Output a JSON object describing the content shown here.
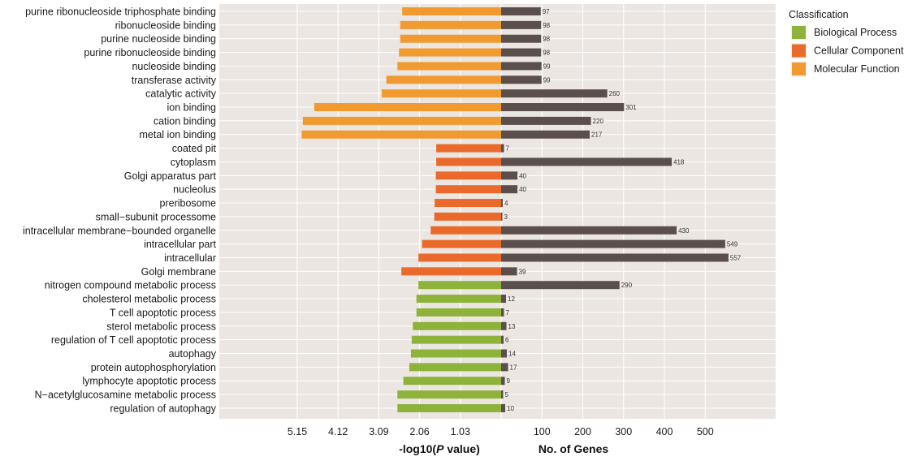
{
  "chart_data": {
    "type": "bar",
    "orientation": "horizontal",
    "panels": [
      "-log10(P value)",
      "No. of Genes"
    ],
    "categories": [
      "purine ribonucleoside triphosphate binding",
      "ribonucleoside binding",
      "purine nucleoside binding",
      "purine ribonucleoside binding",
      "nucleoside binding",
      "transferase activity",
      "catalytic activity",
      "ion binding",
      "cation binding",
      "metal ion binding",
      "coated pit",
      "cytoplasm",
      "Golgi apparatus part",
      "nucleolus",
      "preribosome",
      "small−subunit processome",
      "intracellular membrane−bounded organelle",
      "intracellular part",
      "intracellular",
      "Golgi membrane",
      "nitrogen compound metabolic process",
      "cholesterol metabolic process",
      "T cell apoptotic process",
      "sterol metabolic process",
      "regulation of T cell apoptotic process",
      "autophagy",
      "protein autophosphorylation",
      "lymphocyte apoptotic process",
      "N−acetylglucosamine metabolic process",
      "regulation of autophagy"
    ],
    "classification": [
      "Molecular Function",
      "Molecular Function",
      "Molecular Function",
      "Molecular Function",
      "Molecular Function",
      "Molecular Function",
      "Molecular Function",
      "Molecular Function",
      "Molecular Function",
      "Molecular Function",
      "Cellular Component",
      "Cellular Component",
      "Cellular Component",
      "Cellular Component",
      "Cellular Component",
      "Cellular Component",
      "Cellular Component",
      "Cellular Component",
      "Cellular Component",
      "Cellular Component",
      "Biological Process",
      "Biological Process",
      "Biological Process",
      "Biological Process",
      "Biological Process",
      "Biological Process",
      "Biological Process",
      "Biological Process",
      "Biological Process",
      "Biological Process"
    ],
    "neg_log10_p": [
      2.5,
      2.55,
      2.55,
      2.58,
      2.62,
      2.9,
      3.02,
      4.72,
      5.01,
      5.04,
      1.64,
      1.64,
      1.65,
      1.65,
      1.68,
      1.69,
      1.78,
      2.0,
      2.09,
      2.52,
      2.09,
      2.14,
      2.14,
      2.23,
      2.26,
      2.28,
      2.32,
      2.47,
      2.62,
      2.62
    ],
    "gene_counts": [
      97,
      98,
      98,
      98,
      99,
      99,
      260,
      301,
      220,
      217,
      7,
      418,
      40,
      40,
      4,
      3,
      430,
      549,
      557,
      39,
      290,
      12,
      7,
      13,
      6,
      14,
      17,
      9,
      5,
      10
    ],
    "gene_count_labels": [
      "97",
      "98",
      "98",
      "98",
      "99",
      "99",
      "260",
      "301",
      "220",
      "217",
      "7",
      "418",
      "40",
      "40",
      "4",
      "3",
      "430",
      "549",
      "557",
      "39",
      "290",
      "12",
      "7",
      "13",
      "6",
      "14",
      "17",
      "9",
      "5",
      "10"
    ],
    "left_axis": {
      "title_prefix": "-log10(",
      "title_italic": "P",
      "title_suffix": " value)",
      "tick_values": [
        5.15,
        4.12,
        3.09,
        2.06,
        1.03
      ],
      "tick_labels": [
        "5.15",
        "4.12",
        "3.09",
        "2.06",
        "1.03"
      ],
      "max": 5.15
    },
    "right_axis": {
      "title": "No. of Genes",
      "tick_values": [
        100,
        200,
        300,
        400,
        500
      ],
      "tick_labels": [
        "100",
        "200",
        "300",
        "400",
        "500"
      ],
      "max": 500
    },
    "legend": {
      "title": "Classification",
      "placement": "right",
      "entries": [
        "Biological Process",
        "Cellular Component",
        "Molecular Function"
      ]
    },
    "colors": {
      "Biological Process": "#8DB33A",
      "Cellular Component": "#E96A2B",
      "Molecular Function": "#F09A30",
      "gene_bar": "#5A4F4C",
      "panel_background": "#EBE6E2",
      "grid": "#FFFFFF"
    },
    "grid": true
  }
}
